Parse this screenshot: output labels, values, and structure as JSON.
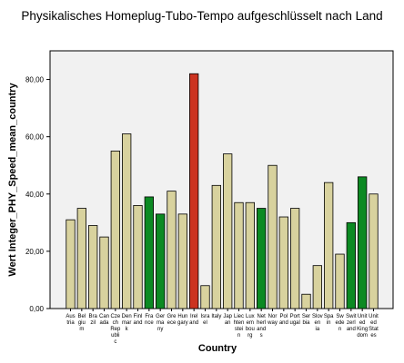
{
  "chart_data": {
    "type": "bar",
    "title": "Physikalisches Homeplug-Tubo-Tempo aufgeschlüsselt nach Land",
    "xlabel": "Country",
    "ylabel": "Wert Integer_PHY_Speed_mean_country",
    "ylim": [
      0,
      90
    ],
    "yticks": [
      "0,00",
      "20,00",
      "40,00",
      "60,00",
      "80,00"
    ],
    "grid": false,
    "colors": {
      "default": "#d8d29e",
      "green": "#0c8a23",
      "red": "#cc3320",
      "plot_bg": "#f1f1f1"
    },
    "categories": [
      [
        "Aus",
        "tria"
      ],
      [
        "Bel",
        "giu",
        "m"
      ],
      [
        "Bra",
        "zil"
      ],
      [
        "Can",
        "ada"
      ],
      [
        "Cze",
        "ch",
        "Rep",
        "ubli",
        "c"
      ],
      [
        "Den",
        "mar",
        "k"
      ],
      [
        "Finl",
        "and"
      ],
      [
        "Fra",
        "nce"
      ],
      [
        "Ger",
        "ma",
        "ny"
      ],
      [
        "Gre",
        "ece"
      ],
      [
        "Hun",
        "gary"
      ],
      [
        "Irel",
        "and"
      ],
      [
        "Isra",
        "el"
      ],
      [
        "Italy"
      ],
      [
        "Jap",
        "an"
      ],
      [
        "Liec",
        "hten",
        "stei",
        "n"
      ],
      [
        "Lux",
        "em",
        "bou",
        "rg"
      ],
      [
        "Net",
        "herl",
        "and",
        "s"
      ],
      [
        "Nor",
        "way"
      ],
      [
        "Pol",
        "and"
      ],
      [
        "Port",
        "ugal"
      ],
      [
        "Ser",
        "bia"
      ],
      [
        "Slov",
        "en",
        "ia"
      ],
      [
        "Spa",
        "in"
      ],
      [
        "Sw",
        "ede",
        "n"
      ],
      [
        "Swit",
        "zerl",
        "and"
      ],
      [
        "Unit",
        "ed",
        "King",
        "dom"
      ],
      [
        "Unit",
        "ed",
        "Stat",
        "es"
      ]
    ],
    "values": [
      31,
      35,
      29,
      25,
      55,
      61,
      36,
      39,
      33,
      41,
      33,
      82,
      8,
      43,
      54,
      37,
      37,
      35,
      50,
      32,
      35,
      5,
      15,
      44,
      19,
      30,
      46,
      40
    ],
    "bar_colors": [
      "default",
      "default",
      "default",
      "default",
      "default",
      "default",
      "default",
      "green",
      "green",
      "default",
      "default",
      "red",
      "default",
      "default",
      "default",
      "default",
      "default",
      "green",
      "default",
      "default",
      "default",
      "default",
      "default",
      "default",
      "default",
      "green",
      "green",
      "default"
    ]
  }
}
